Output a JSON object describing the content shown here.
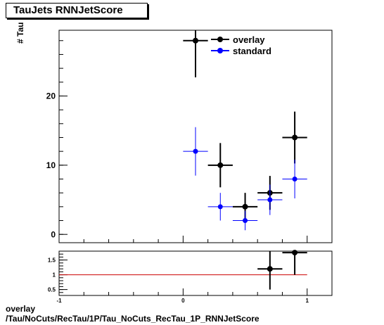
{
  "title": "TauJets RNNJetScore",
  "footer": {
    "line1": "overlay",
    "line2": "/Tau/NoCuts/RecTau/1P/Tau_NoCuts_RecTau_1P_RNNJetScore"
  },
  "colors": {
    "overlay": "#000000",
    "standard": "#0000ff",
    "ratio_line": "#cc0000"
  },
  "chart_data": [
    {
      "type": "scatter",
      "ylabel": "# Tau",
      "xlim": [
        -1,
        1.2
      ],
      "ylim": [
        -1.2,
        29.5
      ],
      "yticks": [
        0,
        10,
        20
      ],
      "legend_position": "top-right",
      "series": [
        {
          "name": "overlay",
          "color": "#000000",
          "x": [
            0.1,
            0.3,
            0.5,
            0.7,
            0.9
          ],
          "xerr": [
            0.1,
            0.1,
            0.1,
            0.1,
            0.1
          ],
          "y": [
            28,
            10,
            4,
            6,
            14
          ],
          "yerr": [
            5.3,
            3.2,
            2.0,
            2.45,
            3.75
          ]
        },
        {
          "name": "standard",
          "color": "#0000ff",
          "x": [
            0.1,
            0.3,
            0.5,
            0.7,
            0.9
          ],
          "xerr": [
            0.1,
            0.1,
            0.1,
            0.1,
            0.1
          ],
          "y": [
            12,
            4,
            2,
            5,
            8
          ],
          "yerr": [
            3.5,
            2.0,
            1.4,
            2.2,
            2.8
          ]
        }
      ]
    },
    {
      "type": "scatter",
      "xlim": [
        -1,
        1.2
      ],
      "ylim": [
        0.3,
        1.8
      ],
      "yticks": [
        0.5,
        1,
        1.5
      ],
      "xticks": [
        -1,
        0,
        1
      ],
      "reference_line": 1,
      "series": [
        {
          "color": "#000000",
          "x": [
            0.7,
            0.9
          ],
          "xerr": [
            0.1,
            0.1
          ],
          "y": [
            1.2,
            1.75
          ],
          "yerr": [
            0.7,
            0.75
          ]
        }
      ]
    }
  ]
}
